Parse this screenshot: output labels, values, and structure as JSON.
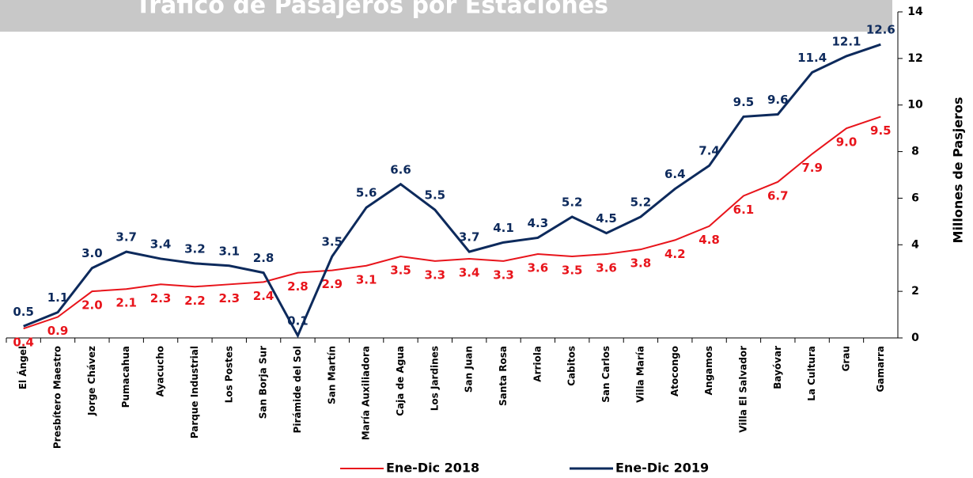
{
  "chart_data": {
    "type": "line",
    "title": "Tráfico de Pasajeros por Estaciones",
    "y_label": "Millones de Pasjeros",
    "categories": [
      "El Ángel",
      "Presbítero Maestro",
      "Jorge Chávez",
      "Pumacahua",
      "Ayacucho",
      "Parque Industrial",
      "Los Postes",
      "San Borja Sur",
      "Pirámide del Sol",
      "San Martín",
      "María Auxiliadora",
      "Caja de Agua",
      "Los Jardines",
      "San Juan",
      "Santa Rosa",
      "Arriola",
      "Cabitos",
      "San Carlos",
      "Villa María",
      "Atocongo",
      "Angamos",
      "Villa El Salvador",
      "Bayóvar",
      "La Cultura",
      "Grau",
      "Gamarra"
    ],
    "series": [
      {
        "name": "Ene-Dic 2018",
        "color": "#e8141b",
        "values": [
          0.4,
          0.9,
          2.0,
          2.1,
          2.3,
          2.2,
          2.3,
          2.4,
          2.8,
          2.9,
          3.1,
          3.5,
          3.3,
          3.4,
          3.3,
          3.6,
          3.5,
          3.6,
          3.8,
          4.2,
          4.8,
          6.1,
          6.7,
          7.9,
          9.0,
          9.5
        ],
        "value_labels": [
          "0.4",
          "0.9",
          "2.0",
          "2.1",
          "2.3",
          "2.2",
          "2.3",
          "2.4",
          "2.8",
          "2.9",
          "3.1",
          "3.5",
          "3.3",
          "3.4",
          "3.3",
          "3.6",
          "3.5",
          "3.6",
          "3.8",
          "4.2",
          "4.8",
          "6.1",
          "6.7",
          "7.9",
          "9.0",
          "9.5"
        ]
      },
      {
        "name": "Ene-Dic 2019",
        "color": "#0d2a5c",
        "values": [
          0.5,
          1.1,
          3.0,
          3.7,
          3.4,
          3.2,
          3.1,
          2.8,
          0.1,
          3.5,
          5.6,
          6.6,
          5.5,
          3.7,
          4.1,
          4.3,
          5.2,
          4.5,
          5.2,
          6.4,
          7.4,
          9.5,
          9.6,
          11.4,
          12.1,
          12.6
        ],
        "value_labels": [
          "0.5",
          "1.1",
          "3.0",
          "3.7",
          "3.4",
          "3.2",
          "3.1",
          "2.8",
          "0.1",
          "3.5",
          "5.6",
          "6.6",
          "5.5",
          "3.7",
          "4.1",
          "4.3",
          "5.2",
          "4.5",
          "5.2",
          "6.4",
          "7.4",
          "9.5",
          "9.6",
          "11.4",
          "12.1",
          "12.6"
        ]
      }
    ],
    "ylim": [
      0,
      14
    ],
    "yticks": [
      0,
      2,
      4,
      6,
      8,
      10,
      12,
      14
    ],
    "legend": "bottom"
  }
}
